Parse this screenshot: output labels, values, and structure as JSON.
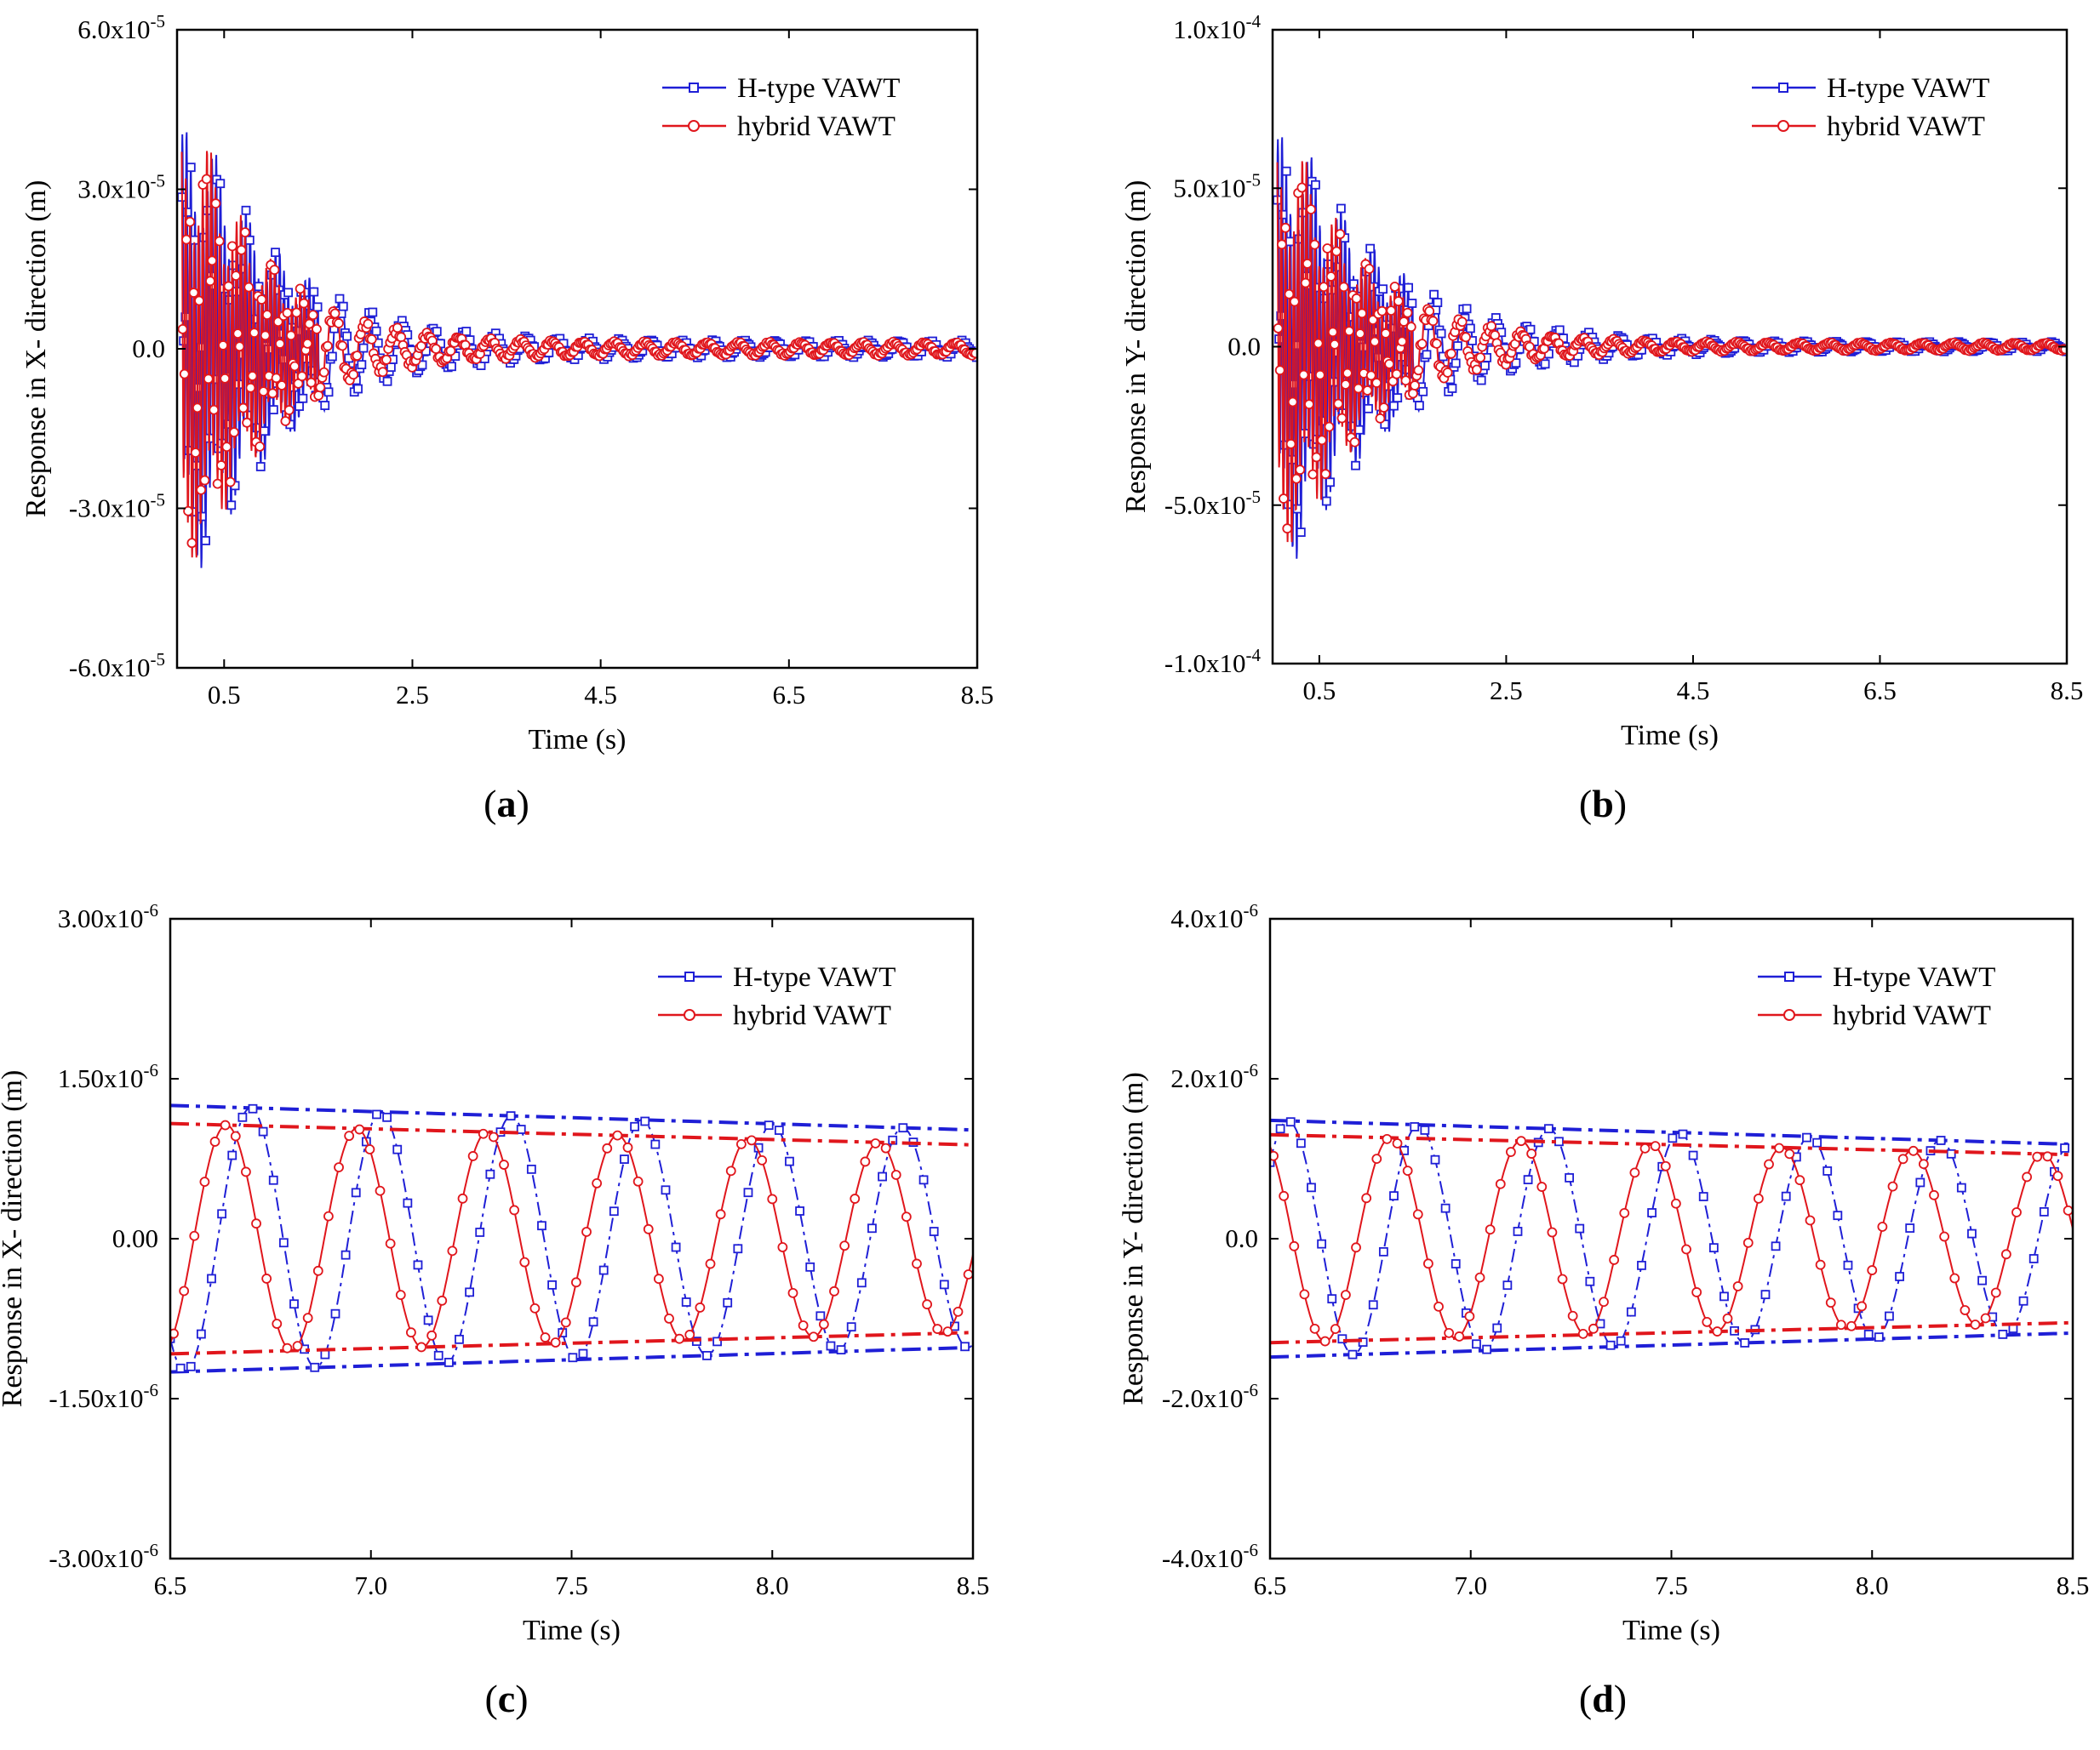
{
  "figure": {
    "legend_position": "top-right",
    "colors": {
      "h_type": "#1f1fd6",
      "hybrid": "#e0161c",
      "axis": "#000000"
    }
  },
  "chart_data": [
    {
      "id": "a",
      "panel_label": "a",
      "type": "line",
      "xlabel": "Time (s)",
      "ylabel": "Response in X- direction (m)",
      "xlim": [
        0.0,
        8.5
      ],
      "ylim": [
        -6e-05,
        6e-05
      ],
      "xticks": [
        0.5,
        2.5,
        4.5,
        6.5,
        8.5
      ],
      "xtick_labels": [
        "0.5",
        "2.5",
        "4.5",
        "6.5",
        "8.5"
      ],
      "yticks": [
        -6e-05,
        -3e-05,
        0,
        3e-05,
        6e-05
      ],
      "ytick_labels": [
        {
          "mant": "-6.0x10",
          "exp": "-5"
        },
        {
          "mant": "-3.0x10",
          "exp": "-5"
        },
        {
          "mant": "0.0",
          "exp": ""
        },
        {
          "mant": "3.0x10",
          "exp": "-5"
        },
        {
          "mant": "6.0x10",
          "exp": "-5"
        }
      ],
      "series": [
        {
          "name": "H-type VAWT",
          "marker": "square",
          "amplitude": 4e-05,
          "decay": 1.1,
          "floor": 1.6e-06,
          "period": 0.33,
          "phase": 0.0
        },
        {
          "name": "hybrid VAWT",
          "marker": "circle",
          "amplitude": 3.9e-05,
          "decay": 1.3,
          "floor": 1.3e-06,
          "period": 0.33,
          "phase": 1.2
        }
      ]
    },
    {
      "id": "b",
      "panel_label": "b",
      "type": "line",
      "xlabel": "Time (s)",
      "ylabel": "Response in Y- direction (m)",
      "xlim": [
        0.0,
        8.5
      ],
      "ylim": [
        -0.0001,
        0.0001
      ],
      "xticks": [
        0.5,
        2.5,
        4.5,
        6.5,
        8.5
      ],
      "xtick_labels": [
        "0.5",
        "2.5",
        "4.5",
        "6.5",
        "8.5"
      ],
      "yticks": [
        -0.0001,
        -5e-05,
        0,
        5e-05,
        0.0001
      ],
      "ytick_labels": [
        {
          "mant": "-1.0x10",
          "exp": "-4"
        },
        {
          "mant": "-5.0x10",
          "exp": "-5"
        },
        {
          "mant": "0.0",
          "exp": ""
        },
        {
          "mant": "5.0x10",
          "exp": "-5"
        },
        {
          "mant": "1.0x10",
          "exp": "-4"
        }
      ],
      "series": [
        {
          "name": "H-type VAWT",
          "marker": "square",
          "amplitude": 6.6e-05,
          "decay": 1.0,
          "floor": 1.5e-06,
          "period": 0.33,
          "phase": 0.0
        },
        {
          "name": "hybrid VAWT",
          "marker": "circle",
          "amplitude": 6.2e-05,
          "decay": 1.2,
          "floor": 1.3e-06,
          "period": 0.33,
          "phase": 1.2
        }
      ]
    },
    {
      "id": "c",
      "panel_label": "c",
      "type": "line",
      "xlabel": "Time (s)",
      "ylabel": "Response in X- direction (m)",
      "xlim": [
        6.5,
        8.5
      ],
      "ylim": [
        -3e-06,
        3e-06
      ],
      "xticks": [
        6.5,
        7.0,
        7.5,
        8.0,
        8.5
      ],
      "xtick_labels": [
        "6.5",
        "7.0",
        "7.5",
        "8.0",
        "8.5"
      ],
      "yticks": [
        -3e-06,
        -1.5e-06,
        0,
        1.5e-06,
        3e-06
      ],
      "ytick_labels": [
        {
          "mant": "-3.00x10",
          "exp": "-6"
        },
        {
          "mant": "-1.50x10",
          "exp": "-6"
        },
        {
          "mant": "0.00",
          "exp": ""
        },
        {
          "mant": "1.50x10",
          "exp": "-6"
        },
        {
          "mant": "3.00x10",
          "exp": "-6"
        }
      ],
      "series": [
        {
          "name": "H-type VAWT",
          "marker": "square",
          "envelope": [
            [
              6.5,
              1.25e-06
            ],
            [
              8.5,
              1.02e-06
            ]
          ],
          "period": 0.325,
          "peak": 6.7
        },
        {
          "name": "hybrid VAWT",
          "marker": "circle",
          "envelope": [
            [
              6.5,
              1.08e-06
            ],
            [
              8.5,
              8.8e-07
            ]
          ],
          "period": 0.325,
          "peak": 6.64
        }
      ]
    },
    {
      "id": "d",
      "panel_label": "d",
      "type": "line",
      "xlabel": "Time (s)",
      "ylabel": "Response in Y- direction (m)",
      "xlim": [
        6.5,
        8.5
      ],
      "ylim": [
        -4e-06,
        4e-06
      ],
      "xticks": [
        6.5,
        7.0,
        7.5,
        8.0,
        8.5
      ],
      "xtick_labels": [
        "6.5",
        "7.0",
        "7.5",
        "8.0",
        "8.5"
      ],
      "yticks": [
        -4e-06,
        -2e-06,
        0,
        2e-06,
        4e-06
      ],
      "ytick_labels": [
        {
          "mant": "-4.0x10",
          "exp": "-6"
        },
        {
          "mant": "-2.0x10",
          "exp": "-6"
        },
        {
          "mant": "0.0",
          "exp": ""
        },
        {
          "mant": "2.0x10",
          "exp": "-6"
        },
        {
          "mant": "4.0x10",
          "exp": "-6"
        }
      ],
      "series": [
        {
          "name": "H-type VAWT",
          "marker": "square",
          "envelope": [
            [
              6.5,
              1.48e-06
            ],
            [
              8.5,
              1.18e-06
            ]
          ],
          "period": 0.325,
          "peak": 6.87
        },
        {
          "name": "hybrid VAWT",
          "marker": "circle",
          "envelope": [
            [
              6.5,
              1.3e-06
            ],
            [
              8.5,
              1.05e-06
            ]
          ],
          "period": 0.325,
          "peak": 6.8
        }
      ]
    }
  ]
}
